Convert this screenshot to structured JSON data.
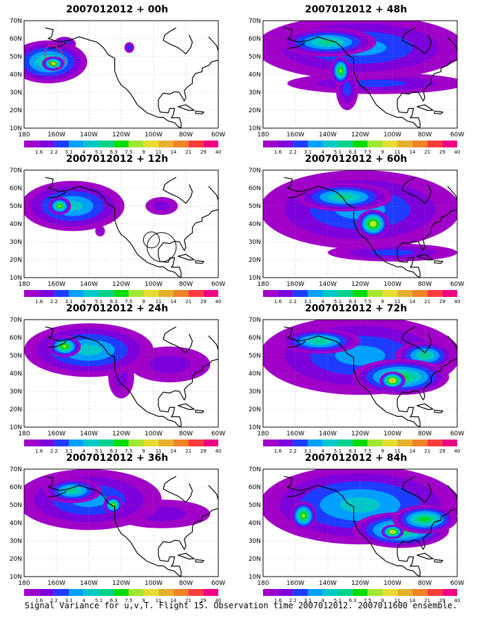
{
  "colors": {
    "levels": [
      "#a000c8",
      "#7d00dc",
      "#1e3cff",
      "#00a0ff",
      "#00c8c8",
      "#00d28c",
      "#00dc00",
      "#a0e632",
      "#e6dc32",
      "#e6af2d",
      "#f08228",
      "#fa3c3c",
      "#f00082"
    ],
    "land_outline": "#000000",
    "grid": "#888888",
    "uncovered": "#ffffff",
    "target_marker": "#ff2244"
  },
  "footer": {
    "caption": "Signal Variance for u,v,T. Flight 15. Observation time 2007012012. 2007011600 ensemble."
  },
  "chart_data": [
    {
      "type": "heatmap",
      "title": "2007012012 + 00h",
      "x_ticks": [
        "180",
        "160W",
        "140W",
        "120W",
        "100W",
        "80W",
        "60W"
      ],
      "y_ticks": [
        "10N",
        "20N",
        "30N",
        "40N",
        "50N",
        "60N",
        "70N"
      ],
      "xlim": [
        -180,
        -60
      ],
      "ylim": [
        10,
        70
      ],
      "colorbar_labels": [
        "1.6",
        "2.2",
        "3.1",
        "4",
        "5.1",
        "6.3",
        "7.5",
        "9",
        "11",
        "14",
        "21",
        "29",
        "40"
      ],
      "blobs": [
        {
          "lon": -165,
          "lat": 47,
          "rx": 24,
          "ry": 12,
          "value": 5
        },
        {
          "lon": -162,
          "lat": 46,
          "rx": 7,
          "ry": 4,
          "value": 8
        },
        {
          "lon": -155,
          "lat": 57,
          "rx": 7,
          "ry": 4,
          "value": 3
        },
        {
          "lon": -115,
          "lat": 55,
          "rx": 3,
          "ry": 3,
          "value": 2
        }
      ],
      "marker": {
        "type": "ellipse",
        "lon": -161,
        "lat": 50,
        "rx": 5,
        "ry": 7
      }
    },
    {
      "type": "heatmap",
      "title": "2007012012 + 48h",
      "x_ticks": [
        "180",
        "160W",
        "140W",
        "120W",
        "100W",
        "80W",
        "60W"
      ],
      "y_ticks": [
        "10N",
        "20N",
        "30N",
        "40N",
        "50N",
        "60N",
        "70N"
      ],
      "xlim": [
        -180,
        -60
      ],
      "ylim": [
        10,
        70
      ],
      "colorbar_labels": [
        "1.6",
        "2.2",
        "3.1",
        "4",
        "5.1",
        "6.3",
        "7.5",
        "9",
        "11",
        "14",
        "21",
        "29",
        "40"
      ],
      "blobs": [
        {
          "lon": -120,
          "lat": 55,
          "rx": 65,
          "ry": 18,
          "value": 3
        },
        {
          "lon": -110,
          "lat": 35,
          "rx": 55,
          "ry": 6,
          "value": 2
        },
        {
          "lon": -128,
          "lat": 32,
          "rx": 7,
          "ry": 12,
          "value": 2
        },
        {
          "lon": -140,
          "lat": 58,
          "rx": 30,
          "ry": 8,
          "value": 5
        },
        {
          "lon": -132,
          "lat": 42,
          "rx": 6,
          "ry": 8,
          "value": 7
        }
      ]
    },
    {
      "type": "heatmap",
      "title": "2007012012 + 12h",
      "x_ticks": [
        "180",
        "160W",
        "140W",
        "120W",
        "100W",
        "80W",
        "60W"
      ],
      "y_ticks": [
        "10N",
        "20N",
        "30N",
        "40N",
        "50N",
        "60N",
        "70N"
      ],
      "xlim": [
        -180,
        -60
      ],
      "ylim": [
        10,
        70
      ],
      "colorbar_labels": [
        "1.6",
        "2.2",
        "3.1",
        "4",
        "5.1",
        "6.3",
        "7.5",
        "9",
        "11",
        "14",
        "21",
        "29",
        "40"
      ],
      "blobs": [
        {
          "lon": -150,
          "lat": 50,
          "rx": 32,
          "ry": 14,
          "value": 4
        },
        {
          "lon": -158,
          "lat": 50,
          "rx": 7,
          "ry": 5,
          "value": 7
        },
        {
          "lon": -95,
          "lat": 50,
          "rx": 10,
          "ry": 5,
          "value": 1
        },
        {
          "lon": -133,
          "lat": 36,
          "rx": 3,
          "ry": 3,
          "value": 1
        }
      ],
      "marker": {
        "type": "circles",
        "lon": -95,
        "lat": 27,
        "r": 9
      }
    },
    {
      "type": "heatmap",
      "title": "2007012012 + 60h",
      "x_ticks": [
        "180",
        "160W",
        "140W",
        "120W",
        "100W",
        "80W",
        "60W"
      ],
      "y_ticks": [
        "10N",
        "20N",
        "30N",
        "40N",
        "50N",
        "60N",
        "70N"
      ],
      "xlim": [
        -180,
        -60
      ],
      "ylim": [
        10,
        70
      ],
      "colorbar_labels": [
        "1.6",
        "2.2",
        "3.1",
        "4",
        "5.1",
        "6.3",
        "7.5",
        "9",
        "11",
        "14",
        "21",
        "29",
        "40"
      ],
      "blobs": [
        {
          "lon": -120,
          "lat": 48,
          "rx": 62,
          "ry": 22,
          "value": 3
        },
        {
          "lon": -130,
          "lat": 55,
          "rx": 30,
          "ry": 8,
          "value": 5
        },
        {
          "lon": -112,
          "lat": 40,
          "rx": 10,
          "ry": 8,
          "value": 8
        },
        {
          "lon": -100,
          "lat": 24,
          "rx": 40,
          "ry": 5,
          "value": 2
        }
      ]
    },
    {
      "type": "heatmap",
      "title": "2007012012 + 24h",
      "x_ticks": [
        "180",
        "160W",
        "140W",
        "120W",
        "100W",
        "80W",
        "60W"
      ],
      "y_ticks": [
        "10N",
        "20N",
        "30N",
        "40N",
        "50N",
        "60N",
        "70N"
      ],
      "xlim": [
        -180,
        -60
      ],
      "ylim": [
        10,
        70
      ],
      "colorbar_labels": [
        "1.6",
        "2.2",
        "3.1",
        "4",
        "5.1",
        "6.3",
        "7.5",
        "9",
        "11",
        "14",
        "21",
        "29",
        "40"
      ],
      "blobs": [
        {
          "lon": -140,
          "lat": 53,
          "rx": 40,
          "ry": 15,
          "value": 4
        },
        {
          "lon": -155,
          "lat": 55,
          "rx": 10,
          "ry": 6,
          "value": 7
        },
        {
          "lon": -90,
          "lat": 45,
          "rx": 25,
          "ry": 10,
          "value": 1
        },
        {
          "lon": -120,
          "lat": 38,
          "rx": 8,
          "ry": 12,
          "value": 1
        }
      ]
    },
    {
      "type": "heatmap",
      "title": "2007012012 + 72h",
      "x_ticks": [
        "180",
        "160W",
        "140W",
        "120W",
        "100W",
        "80W",
        "60W"
      ],
      "y_ticks": [
        "10N",
        "20N",
        "30N",
        "40N",
        "50N",
        "60N",
        "70N"
      ],
      "xlim": [
        -180,
        -60
      ],
      "ylim": [
        10,
        70
      ],
      "colorbar_labels": [
        "1.6",
        "2.2",
        "3.1",
        "4",
        "5.1",
        "6.3",
        "7.5",
        "9",
        "11",
        "14",
        "21",
        "29",
        "40"
      ],
      "blobs": [
        {
          "lon": -120,
          "lat": 50,
          "rx": 62,
          "ry": 22,
          "value": 3
        },
        {
          "lon": -95,
          "lat": 38,
          "rx": 30,
          "ry": 10,
          "value": 6
        },
        {
          "lon": -100,
          "lat": 36,
          "rx": 8,
          "ry": 5,
          "value": 9
        },
        {
          "lon": -145,
          "lat": 58,
          "rx": 25,
          "ry": 7,
          "value": 5
        },
        {
          "lon": -80,
          "lat": 50,
          "rx": 18,
          "ry": 8,
          "value": 5
        }
      ]
    },
    {
      "type": "heatmap",
      "title": "2007012012 + 36h",
      "x_ticks": [
        "180",
        "160W",
        "140W",
        "120W",
        "100W",
        "80W",
        "60W"
      ],
      "y_ticks": [
        "10N",
        "20N",
        "30N",
        "40N",
        "50N",
        "60N",
        "70N"
      ],
      "xlim": [
        -180,
        -60
      ],
      "ylim": [
        10,
        70
      ],
      "colorbar_labels": [
        "1.6",
        "2.2",
        "3.1",
        "4",
        "5.1",
        "6.3",
        "7.5",
        "9",
        "11",
        "14",
        "21",
        "29",
        "40"
      ],
      "blobs": [
        {
          "lon": -140,
          "lat": 53,
          "rx": 45,
          "ry": 17,
          "value": 3
        },
        {
          "lon": -150,
          "lat": 58,
          "rx": 18,
          "ry": 7,
          "value": 5
        },
        {
          "lon": -125,
          "lat": 50,
          "rx": 6,
          "ry": 5,
          "value": 7
        },
        {
          "lon": -95,
          "lat": 45,
          "rx": 30,
          "ry": 8,
          "value": 1
        }
      ]
    },
    {
      "type": "heatmap",
      "title": "2007012012 + 84h",
      "x_ticks": [
        "180",
        "160W",
        "140W",
        "120W",
        "100W",
        "80W",
        "60W"
      ],
      "y_ticks": [
        "10N",
        "20N",
        "30N",
        "40N",
        "50N",
        "60N",
        "70N"
      ],
      "xlim": [
        -180,
        -60
      ],
      "ylim": [
        10,
        70
      ],
      "colorbar_labels": [
        "1.6",
        "2.2",
        "3.1",
        "4",
        "5.1",
        "6.3",
        "7.5",
        "9",
        "11",
        "14",
        "21",
        "29",
        "40"
      ],
      "blobs": [
        {
          "lon": -120,
          "lat": 50,
          "rx": 62,
          "ry": 22,
          "value": 4
        },
        {
          "lon": -155,
          "lat": 44,
          "rx": 8,
          "ry": 8,
          "value": 7
        },
        {
          "lon": -95,
          "lat": 36,
          "rx": 30,
          "ry": 10,
          "value": 6
        },
        {
          "lon": -100,
          "lat": 35,
          "rx": 7,
          "ry": 4,
          "value": 9
        },
        {
          "lon": -80,
          "lat": 42,
          "rx": 20,
          "ry": 8,
          "value": 6
        }
      ]
    }
  ]
}
